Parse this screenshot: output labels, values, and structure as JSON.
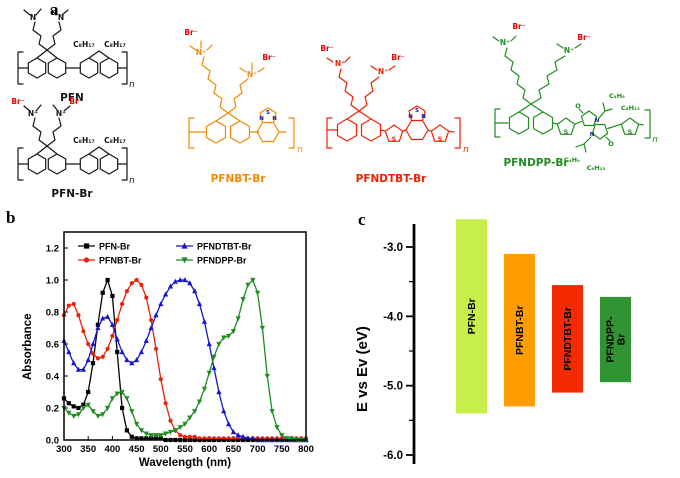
{
  "panels": {
    "a": "a",
    "b": "b",
    "c": "c"
  },
  "panel_a": {
    "structures": [
      {
        "name": "PFN",
        "color": "#000000"
      },
      {
        "name": "PFN-Br",
        "color": "#000000"
      },
      {
        "name": "PFNBT-Br",
        "color": "#f28900"
      },
      {
        "name": "PFNDTBT-Br",
        "color": "#ee2000"
      },
      {
        "name": "PFNDPP-Br",
        "color": "#1f8c1f"
      }
    ],
    "atoms": {
      "n": "N",
      "n_plus": "N⁺",
      "br_minus": "Br⁻",
      "s": "S",
      "o": "O",
      "c8h17": "C₈H₁₇",
      "c4h9": "C₄H₉",
      "c6h13": "C₆H₁₃",
      "repeat": "n"
    }
  },
  "chart_data": [
    {
      "id": "absorbance-spectra",
      "type": "line",
      "title": "",
      "xlabel": "Wavelength (nm)",
      "ylabel": "Absorbance",
      "xlim": [
        300,
        800
      ],
      "ylim": [
        0.0,
        1.3
      ],
      "xticks": [
        300,
        350,
        400,
        450,
        500,
        550,
        600,
        650,
        700,
        750,
        800
      ],
      "yticks": [
        0.0,
        0.2,
        0.4,
        0.6,
        0.8,
        1.0,
        1.2
      ],
      "grid": false,
      "legend_position": "top-inside",
      "x": [
        300,
        310,
        320,
        330,
        340,
        350,
        360,
        370,
        380,
        390,
        400,
        410,
        420,
        430,
        440,
        450,
        460,
        470,
        480,
        490,
        500,
        510,
        520,
        530,
        540,
        550,
        560,
        570,
        580,
        590,
        600,
        610,
        620,
        630,
        640,
        650,
        660,
        670,
        680,
        690,
        700,
        710,
        720,
        730,
        740,
        750,
        760,
        770,
        780,
        790,
        800
      ],
      "series": [
        {
          "name": "PFN-Br",
          "color": "#000000",
          "marker": "square",
          "values": [
            0.26,
            0.23,
            0.21,
            0.2,
            0.22,
            0.3,
            0.48,
            0.72,
            0.92,
            1.0,
            0.9,
            0.55,
            0.2,
            0.06,
            0.02,
            0.01,
            0.01,
            0.01,
            0.01,
            0.01,
            0.01,
            0,
            0,
            0,
            0,
            0,
            0,
            0,
            0,
            0,
            0,
            0,
            0,
            0,
            0,
            0,
            0,
            0,
            0,
            0,
            0,
            0,
            0,
            0,
            0,
            0,
            0,
            0,
            0,
            0,
            0
          ]
        },
        {
          "name": "PFNBT-Br",
          "color": "#e8210a",
          "marker": "circle",
          "values": [
            0.78,
            0.84,
            0.85,
            0.78,
            0.68,
            0.6,
            0.54,
            0.51,
            0.52,
            0.57,
            0.65,
            0.75,
            0.85,
            0.93,
            0.98,
            1.0,
            0.97,
            0.89,
            0.75,
            0.57,
            0.38,
            0.23,
            0.12,
            0.06,
            0.03,
            0.02,
            0.02,
            0.02,
            0.01,
            0.01,
            0.01,
            0.01,
            0.01,
            0.01,
            0.01,
            0.01,
            0.01,
            0.01,
            0.01,
            0.01,
            0.01,
            0.01,
            0.01,
            0.01,
            0.01,
            0.01,
            0.01,
            0.01,
            0.01,
            0.01,
            0.01
          ]
        },
        {
          "name": "PFNDTBT-Br",
          "color": "#1515cc",
          "marker": "triangle-up",
          "values": [
            0.62,
            0.55,
            0.48,
            0.44,
            0.44,
            0.5,
            0.6,
            0.7,
            0.76,
            0.77,
            0.72,
            0.63,
            0.55,
            0.5,
            0.48,
            0.5,
            0.55,
            0.62,
            0.7,
            0.78,
            0.85,
            0.91,
            0.96,
            0.99,
            1.0,
            1.0,
            0.98,
            0.93,
            0.85,
            0.74,
            0.6,
            0.45,
            0.3,
            0.18,
            0.1,
            0.05,
            0.03,
            0.02,
            0.01,
            0.01,
            0,
            0,
            0,
            0,
            0,
            0,
            0,
            0,
            0,
            0,
            0
          ]
        },
        {
          "name": "PFNDPP-Br",
          "color": "#1f8c1f",
          "marker": "triangle-down",
          "values": [
            0.2,
            0.17,
            0.15,
            0.16,
            0.2,
            0.22,
            0.18,
            0.15,
            0.16,
            0.2,
            0.26,
            0.29,
            0.3,
            0.26,
            0.18,
            0.1,
            0.06,
            0.04,
            0.03,
            0.03,
            0.03,
            0.04,
            0.05,
            0.06,
            0.08,
            0.1,
            0.14,
            0.18,
            0.24,
            0.32,
            0.42,
            0.52,
            0.6,
            0.64,
            0.65,
            0.68,
            0.76,
            0.88,
            0.97,
            1.0,
            0.92,
            0.7,
            0.4,
            0.18,
            0.08,
            0.03,
            0.01,
            0.01,
            0,
            0,
            0
          ]
        }
      ]
    },
    {
      "id": "energy-levels",
      "type": "bar",
      "ylabel": "E vs Ev (eV)",
      "ylim": [
        -6.2,
        -2.5
      ],
      "yticks": [
        -3.0,
        -4.0,
        -5.0,
        -6.0
      ],
      "bars": [
        {
          "name": "PFN-Br",
          "label_lines": [
            "PFN-Br"
          ],
          "color": "#c6ef4a",
          "lumo": -2.6,
          "homo": -5.4,
          "text_color": "#000000"
        },
        {
          "name": "PFNBT-Br",
          "label_lines": [
            "PFNBT-Br"
          ],
          "color": "#ff9c00",
          "lumo": -3.1,
          "homo": -5.3,
          "text_color": "#000000"
        },
        {
          "name": "PFNDTBT-Br",
          "label_lines": [
            "PFNDTBT-Br"
          ],
          "color": "#f42a00",
          "lumo": -3.55,
          "homo": -5.1,
          "text_color": "#000000"
        },
        {
          "name": "PFNDPP-Br",
          "label_lines": [
            "PFNDPP-",
            "Br"
          ],
          "color": "#2f9431",
          "lumo": -3.72,
          "homo": -4.95,
          "text_color": "#000000"
        }
      ]
    }
  ]
}
